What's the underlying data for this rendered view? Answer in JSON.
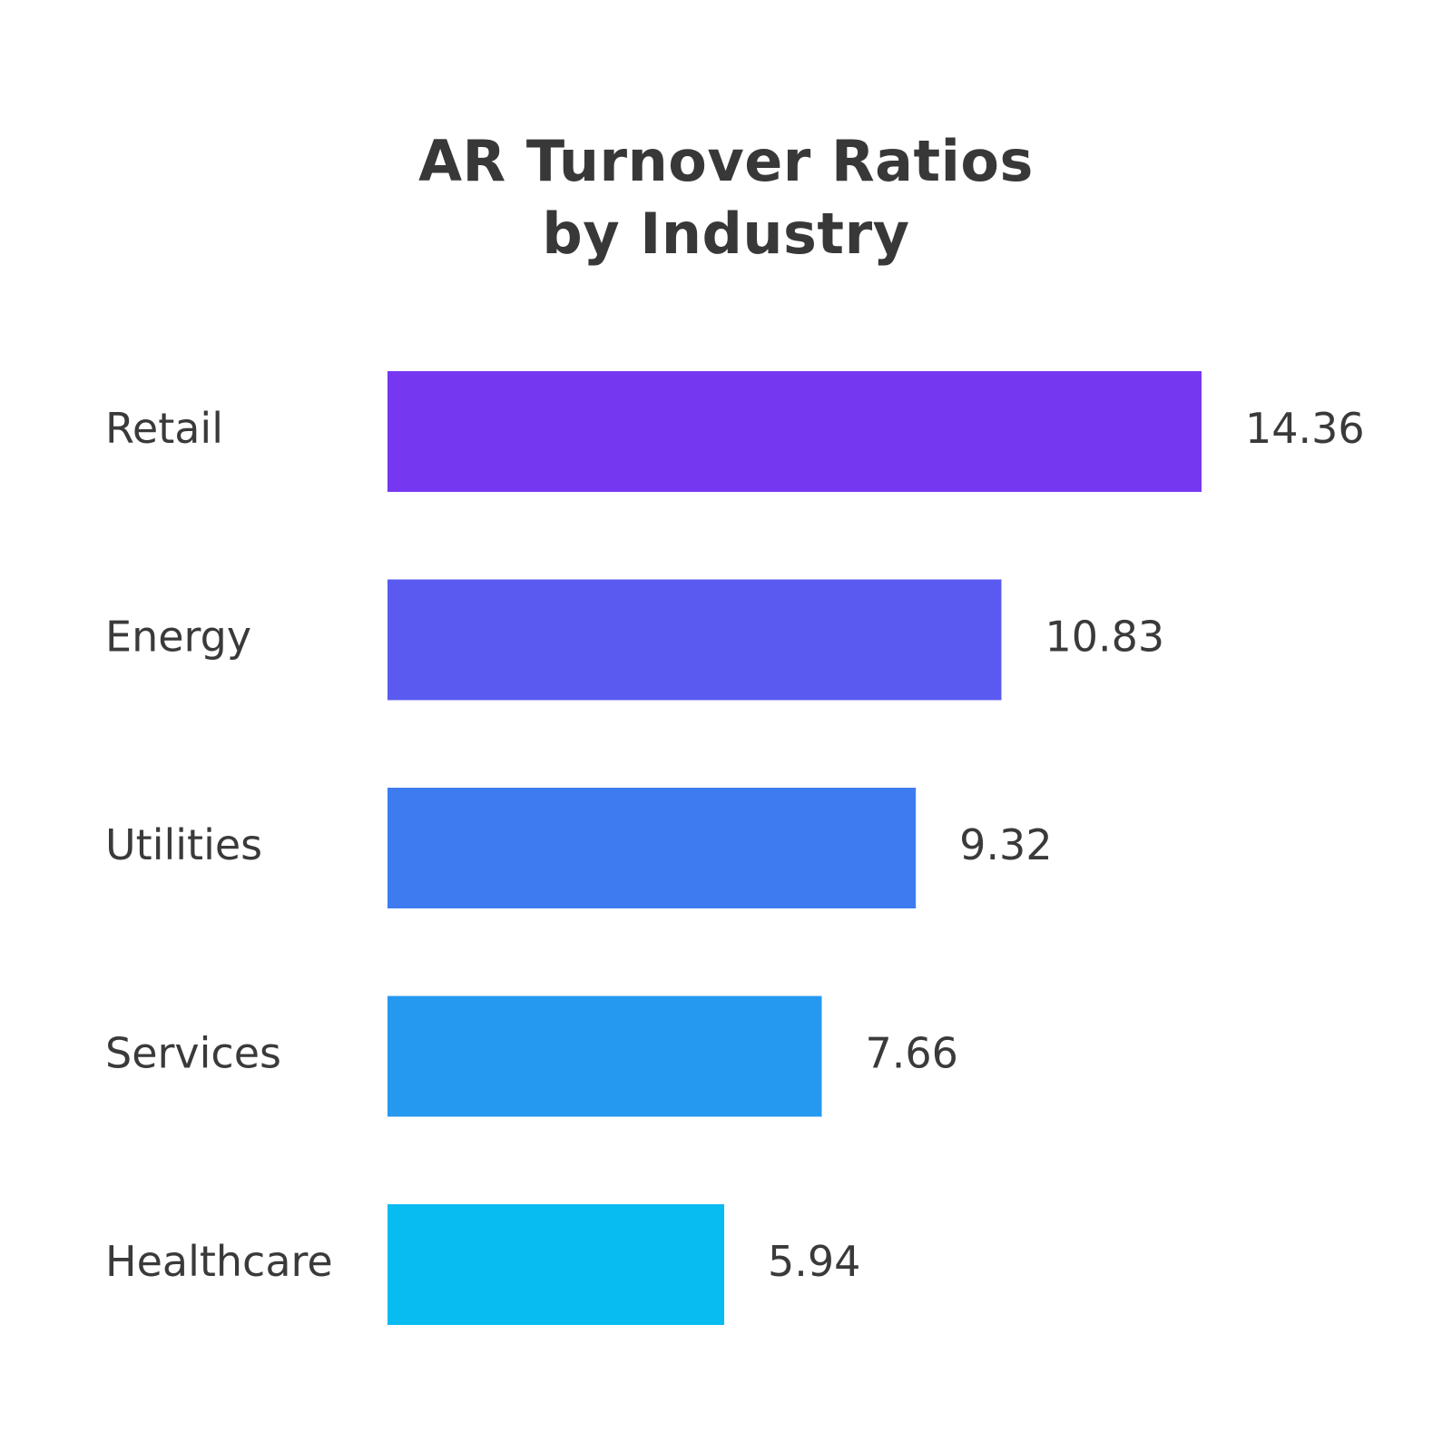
{
  "chart_data": {
    "type": "bar",
    "orientation": "horizontal",
    "title_line1": "AR Turnover Ratios",
    "title_line2": "by Industry",
    "categories": [
      "Retail",
      "Energy",
      "Utilities",
      "Services",
      "Healthcare"
    ],
    "values": [
      14.36,
      10.83,
      9.32,
      7.66,
      5.94
    ],
    "value_labels": [
      "14.36",
      "10.83",
      "9.32",
      "7.66",
      "5.94"
    ],
    "bar_colors": [
      "#7538f0",
      "#5a5af0",
      "#3d7cf0",
      "#2598ef",
      "#08bbf0"
    ],
    "xlim": [
      0,
      14.36
    ],
    "grid": false,
    "legend": "none"
  }
}
